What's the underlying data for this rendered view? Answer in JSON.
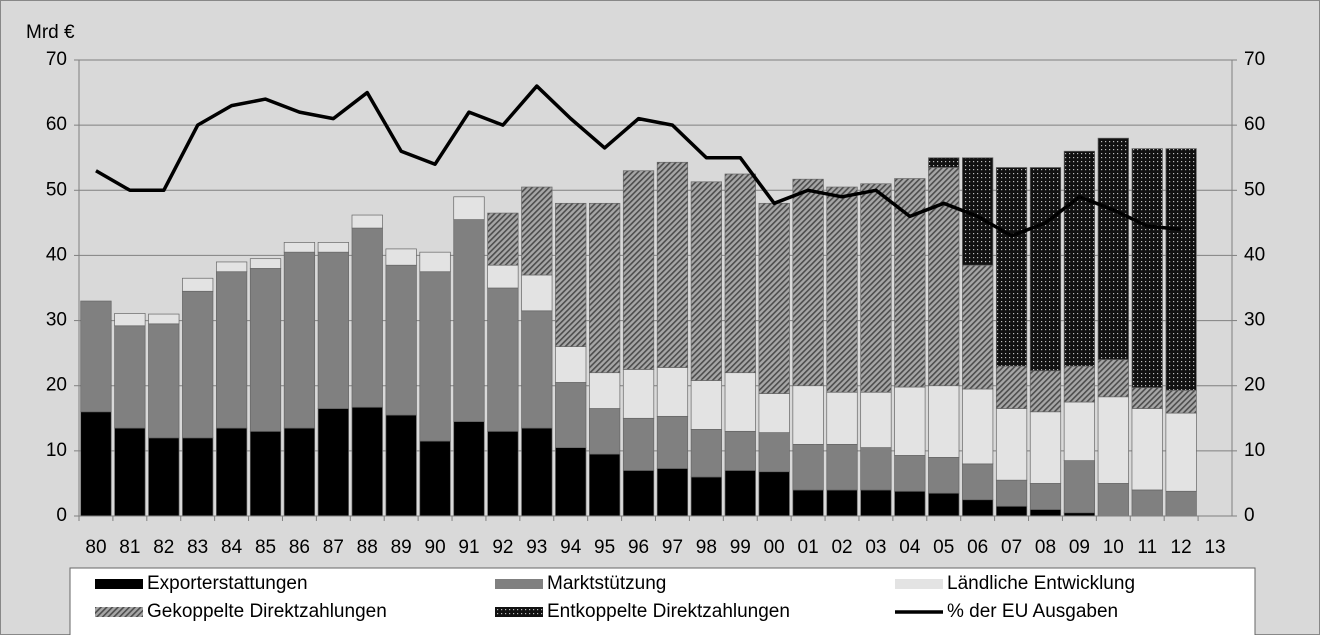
{
  "chart_data": {
    "type": "bar",
    "stacked": true,
    "y_label": "Mrd €",
    "categories": [
      "80",
      "81",
      "82",
      "83",
      "84",
      "85",
      "86",
      "87",
      "88",
      "89",
      "90",
      "91",
      "92",
      "93",
      "94",
      "95",
      "96",
      "97",
      "98",
      "99",
      "00",
      "01",
      "02",
      "03",
      "04",
      "05",
      "06",
      "07",
      "08",
      "09",
      "10",
      "11",
      "12",
      "13"
    ],
    "ylim": [
      0,
      70
    ],
    "yticks": [
      0,
      10,
      20,
      30,
      40,
      50,
      60,
      70
    ],
    "y2lim": [
      0,
      70
    ],
    "y2ticks": [
      0,
      10,
      20,
      30,
      40,
      50,
      60,
      70
    ],
    "grid": true,
    "series": [
      {
        "name": "Exporterstattungen",
        "color": "#000000",
        "values": [
          16,
          13.5,
          12,
          12,
          13.5,
          13,
          13.5,
          16.5,
          16.7,
          15.5,
          11.5,
          14.5,
          13,
          13.5,
          10.5,
          9.5,
          7,
          7.3,
          6,
          7,
          6.8,
          4,
          4,
          4,
          3.8,
          3.5,
          2.5,
          1.5,
          1,
          0.5,
          0,
          0,
          0,
          null
        ]
      },
      {
        "name": "Marktstützung",
        "color": "#808080",
        "values": [
          17,
          15.7,
          17.5,
          22.5,
          24,
          25,
          27,
          24,
          27.5,
          23,
          26,
          31,
          22,
          18,
          10,
          7,
          8,
          8,
          7.3,
          6,
          6,
          7,
          7,
          6.5,
          5.5,
          5.5,
          5.5,
          4,
          4,
          8,
          5,
          4,
          3.8,
          null
        ]
      },
      {
        "name": "Ländliche Entwicklung",
        "color": "#e3e3e3",
        "values": [
          0,
          1.9,
          1.5,
          2,
          1.5,
          1.5,
          1.5,
          1.5,
          2,
          2.5,
          3,
          3.5,
          3.5,
          5.5,
          5.5,
          5.5,
          7.5,
          7.5,
          7.5,
          9,
          6,
          9,
          8,
          8.5,
          10.5,
          11,
          11.5,
          11,
          11,
          9,
          13.3,
          12.5,
          12,
          null
        ]
      },
      {
        "name": "Gekoppelte Direktzahlungen",
        "color": "#7a7a7a",
        "pattern": "hatch",
        "values": [
          0,
          0,
          0,
          0,
          0,
          0,
          0,
          0,
          0,
          0,
          0,
          0,
          8,
          13.5,
          22,
          26,
          30.5,
          31.5,
          30.5,
          30.5,
          29.2,
          31.7,
          31.5,
          32,
          32,
          33.5,
          19,
          6.5,
          6.3,
          5.5,
          5.7,
          3.2,
          3.5,
          null
        ]
      },
      {
        "name": "Entkoppelte Direktzahlungen",
        "color": "#1a1a1a",
        "pattern": "dots",
        "values": [
          0,
          0,
          0,
          0,
          0,
          0,
          0,
          0,
          0,
          0,
          0,
          0,
          0,
          0,
          0,
          0,
          0,
          0,
          0,
          0,
          0,
          0,
          0,
          0,
          0,
          1.5,
          16.5,
          30.5,
          31.2,
          33,
          34,
          36.7,
          37.1,
          null
        ]
      },
      {
        "name": "% der EU Ausgaben",
        "color": "#000000",
        "type": "line",
        "axis": "y2",
        "values": [
          53,
          50,
          50,
          60,
          63,
          64,
          62,
          61,
          65,
          56,
          54,
          62,
          60,
          66,
          61,
          56.5,
          61,
          60,
          55,
          55,
          48,
          50,
          49,
          50,
          46,
          48,
          46,
          43,
          45,
          49,
          47,
          44.5,
          44,
          null
        ]
      }
    ]
  }
}
